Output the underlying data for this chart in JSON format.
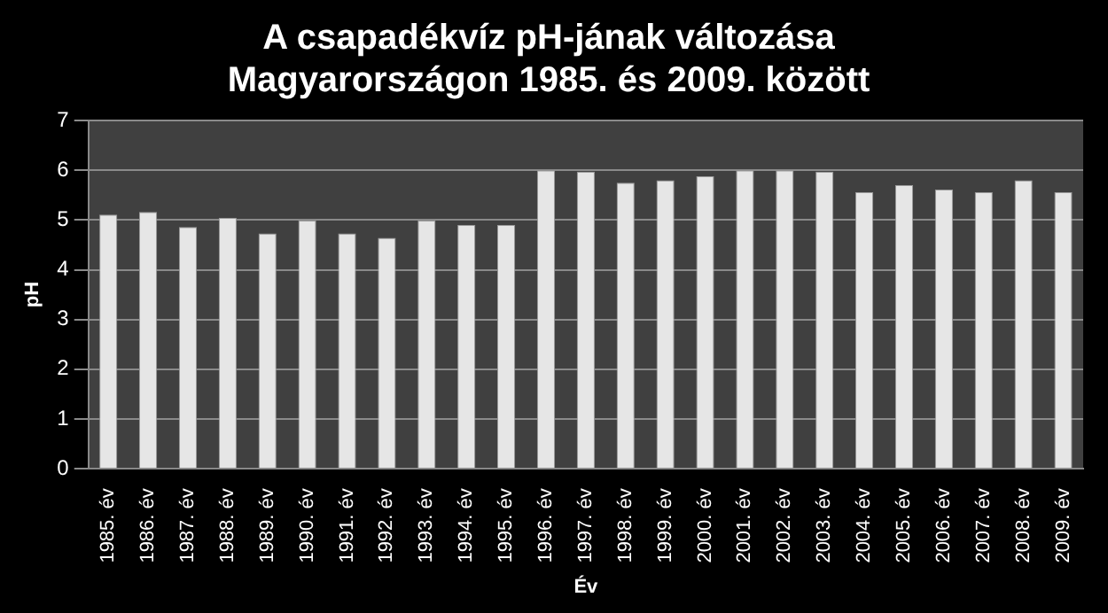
{
  "chart_data": {
    "type": "bar",
    "title": "A csapadékvíz pH-jának változása\nMagyarországon 1985. és 2009. között",
    "xlabel": "Év",
    "ylabel": "pH",
    "categories": [
      "1985. év",
      "1986. év",
      "1987. év",
      "1988. év",
      "1989. év",
      "1990. év",
      "1991. év",
      "1992. év",
      "1993. év",
      "1994. év",
      "1995. év",
      "1996. év",
      "1997. év",
      "1998. év",
      "1999. év",
      "2000. év",
      "2001. év",
      "2002. év",
      "2003. év",
      "2004. év",
      "2005. év",
      "2006. év",
      "2007. év",
      "2008. év",
      "2009. év"
    ],
    "values": [
      5.11,
      5.16,
      4.86,
      5.04,
      4.73,
      4.99,
      4.73,
      4.64,
      4.99,
      4.9,
      4.9,
      6.0,
      5.97,
      5.75,
      5.8,
      5.88,
      6.0,
      6.0,
      5.97,
      5.56,
      5.7,
      5.61,
      5.56,
      5.8,
      5.56
    ],
    "color": "#e6e6e6",
    "ylim": [
      0,
      7
    ],
    "yticks": [
      0,
      1,
      2,
      3,
      4,
      5,
      6,
      7
    ],
    "grid": "y",
    "legend": false
  }
}
